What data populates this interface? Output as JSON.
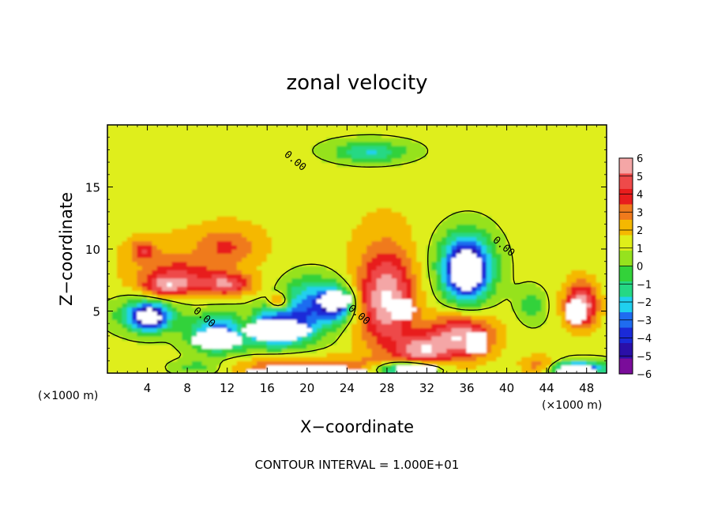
{
  "chart_data": {
    "type": "heatmap",
    "title": "zonal velocity",
    "xlabel": "X−coordinate",
    "ylabel": "Z−coordinate",
    "x_unit_label_left": "(×1000 m)",
    "x_unit_label_right": "(×1000 m)",
    "xlim": [
      0,
      50
    ],
    "ylim": [
      0,
      20
    ],
    "x_ticks": [
      4,
      8,
      12,
      16,
      20,
      24,
      28,
      32,
      36,
      40,
      44,
      48
    ],
    "x_tick_labels": [
      "4",
      "8",
      "12",
      "16",
      "20",
      "24",
      "28",
      "32",
      "36",
      "40",
      "44",
      "48"
    ],
    "y_ticks": [
      5,
      10,
      15
    ],
    "y_tick_labels": [
      "5",
      "10",
      "15"
    ],
    "footnote": "CONTOUR INTERVAL = 1.000E+01",
    "colorbar": {
      "labels": [
        "6",
        "5",
        "4",
        "3",
        "2",
        "1",
        "0",
        "−1",
        "−2",
        "−3",
        "−4",
        "−5",
        "−6"
      ],
      "values": [
        6,
        5,
        4,
        3,
        2,
        1,
        0,
        -1,
        -2,
        -3,
        -4,
        -5,
        -6
      ],
      "colors": [
        "#f4a6a6",
        "#ee4a4a",
        "#e81d1d",
        "#f07a1c",
        "#f5b800",
        "#dfee1a",
        "#96e21e",
        "#33d23a",
        "#25d884",
        "#20d0ee",
        "#1f6cf0",
        "#1a2ad8",
        "#2a0fa8",
        "#7a0c9a"
      ],
      "over_color": "#ffffff",
      "under_color": "#ffffff"
    },
    "contour_labels": [
      {
        "text": "0.00",
        "x": 18.6,
        "z": 16.9
      },
      {
        "text": "0.00",
        "x": 39.5,
        "z": 10.0
      },
      {
        "text": "0.00",
        "x": 9.5,
        "z": 4.3
      },
      {
        "text": "0.00",
        "x": 25.0,
        "z": 4.5
      }
    ],
    "blobs": [
      {
        "x": 25.0,
        "z": 13.0,
        "sx": 35.0,
        "sz": 14.0,
        "v": 0.8
      },
      {
        "x": 5.0,
        "z": 9.0,
        "sx": 5.0,
        "sz": 2.6,
        "v": 1.0
      },
      {
        "x": 12.0,
        "z": 10.2,
        "sx": 3.0,
        "sz": 1.6,
        "v": 2.4
      },
      {
        "x": 3.6,
        "z": 9.9,
        "sx": 1.2,
        "sz": 0.8,
        "v": 2.8
      },
      {
        "x": 7.5,
        "z": 8.0,
        "sx": 3.5,
        "sz": 1.3,
        "v": 2.3
      },
      {
        "x": 6.0,
        "z": 7.0,
        "sx": 2.5,
        "sz": 0.9,
        "v": 4.0
      },
      {
        "x": 12.0,
        "z": 7.2,
        "sx": 2.5,
        "sz": 0.9,
        "v": 4.3
      },
      {
        "x": 17.2,
        "z": 5.8,
        "sx": 0.9,
        "sz": 0.6,
        "v": 3.8
      },
      {
        "x": 28.0,
        "z": 6.0,
        "sx": 2.8,
        "sz": 4.0,
        "v": 5.6
      },
      {
        "x": 35.5,
        "z": 3.0,
        "sx": 3.2,
        "sz": 1.8,
        "v": 5.6
      },
      {
        "x": 31.5,
        "z": 1.8,
        "sx": 2.5,
        "sz": 1.3,
        "v": 4.5
      },
      {
        "x": 47.5,
        "z": 5.5,
        "sx": 1.6,
        "sz": 1.8,
        "v": 5.8
      },
      {
        "x": 43.5,
        "z": 0.6,
        "sx": 2.0,
        "sz": 0.8,
        "v": 3.0
      },
      {
        "x": 20.0,
        "z": 0.6,
        "sx": 8.0,
        "sz": 0.8,
        "v": 3.0
      },
      {
        "x": 4.2,
        "z": 4.5,
        "sx": 1.7,
        "sz": 1.0,
        "v": -6.5
      },
      {
        "x": 4.0,
        "z": 4.8,
        "sx": 3.3,
        "sz": 1.4,
        "v": -3.5
      },
      {
        "x": 11.0,
        "z": 3.2,
        "sx": 2.8,
        "sz": 1.6,
        "v": -5.0
      },
      {
        "x": 17.0,
        "z": 3.7,
        "sx": 3.6,
        "sz": 1.6,
        "v": -6.3
      },
      {
        "x": 20.5,
        "z": 5.8,
        "sx": 3.0,
        "sz": 2.2,
        "v": -4.5
      },
      {
        "x": 23.0,
        "z": 5.6,
        "sx": 1.6,
        "sz": 1.2,
        "v": -6.2
      },
      {
        "x": 36.0,
        "z": 8.3,
        "sx": 2.2,
        "sz": 2.4,
        "v": -8.0
      },
      {
        "x": 36.0,
        "z": 9.0,
        "sx": 3.8,
        "sz": 3.5,
        "v": -2.2
      },
      {
        "x": 42.5,
        "z": 5.5,
        "sx": 1.5,
        "sz": 1.5,
        "v": -2.0
      },
      {
        "x": 14.0,
        "z": 4.0,
        "sx": 1.2,
        "sz": 1.0,
        "v": 2.5
      },
      {
        "x": 26.5,
        "z": 17.8,
        "sx": 3.5,
        "sz": 0.8,
        "v": -2.8
      },
      {
        "x": 26.0,
        "z": 18.0,
        "sx": 7.0,
        "sz": 1.5,
        "v": -1.0
      },
      {
        "x": 9.0,
        "z": 0.5,
        "sx": 2.5,
        "sz": 0.6,
        "v": -2.0
      },
      {
        "x": 30.0,
        "z": 0.4,
        "sx": 3.0,
        "sz": 0.6,
        "v": -6.5
      },
      {
        "x": 47.0,
        "z": 0.4,
        "sx": 3.0,
        "sz": 0.6,
        "v": -6.5
      }
    ],
    "white_patches": [
      {
        "x": 4.2,
        "z": 4.5,
        "sx": 0.9,
        "sz": 0.6
      },
      {
        "x": 11.0,
        "z": 2.8,
        "sx": 2.5,
        "sz": 0.8
      },
      {
        "x": 17.0,
        "z": 3.5,
        "sx": 3.3,
        "sz": 0.8
      },
      {
        "x": 22.8,
        "z": 5.9,
        "sx": 1.6,
        "sz": 0.7
      },
      {
        "x": 36.0,
        "z": 8.3,
        "sx": 1.7,
        "sz": 1.5
      },
      {
        "x": 47.0,
        "z": 5.0,
        "sx": 1.0,
        "sz": 0.9
      },
      {
        "x": 29.5,
        "z": 5.2,
        "sx": 1.3,
        "sz": 0.9
      },
      {
        "x": 37.0,
        "z": 2.5,
        "sx": 1.2,
        "sz": 0.9
      },
      {
        "x": 20.0,
        "z": 0.2,
        "sx": 6.0,
        "sz": 0.4
      },
      {
        "x": 31.0,
        "z": 0.3,
        "sx": 2.0,
        "sz": 0.5
      },
      {
        "x": 47.0,
        "z": 0.2,
        "sx": 2.0,
        "sz": 0.4
      }
    ]
  }
}
